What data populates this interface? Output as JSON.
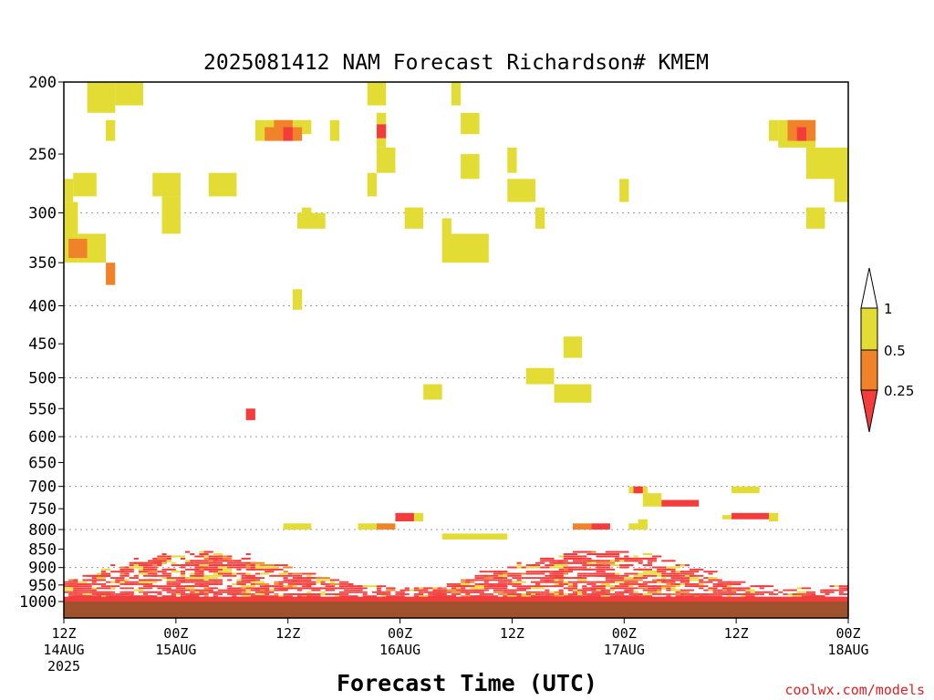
{
  "chart_data": {
    "type": "heatmap",
    "title": "2025081412 NAM Forecast Richardson# KMEM",
    "xlabel": "Forecast Time (UTC)",
    "credit": "coolwx.com/models",
    "y_axis": {
      "quantity": "pressure (hPa)",
      "scale": "log",
      "inverted": true,
      "range": [
        1000,
        200
      ],
      "ticks": [
        "200",
        "250",
        "300",
        "350",
        "400",
        "450",
        "500",
        "550",
        "600",
        "650",
        "700",
        "750",
        "800",
        "850",
        "900",
        "950",
        "1000"
      ],
      "gridlines_at": [
        300,
        400,
        500,
        600,
        700,
        800,
        900
      ]
    },
    "x_axis": {
      "range_hours": [
        0,
        84
      ],
      "ticks": [
        {
          "h": 0,
          "lines": [
            "12Z",
            "14AUG",
            "2025"
          ]
        },
        {
          "h": 12,
          "lines": [
            "00Z",
            "15AUG"
          ]
        },
        {
          "h": 24,
          "lines": [
            "12Z"
          ]
        },
        {
          "h": 36,
          "lines": [
            "00Z",
            "16AUG"
          ]
        },
        {
          "h": 48,
          "lines": [
            "12Z"
          ]
        },
        {
          "h": 60,
          "lines": [
            "00Z",
            "17AUG"
          ]
        },
        {
          "h": 72,
          "lines": [
            "12Z"
          ]
        },
        {
          "h": 84,
          "lines": [
            "00Z",
            "18AUG"
          ]
        }
      ]
    },
    "legend": {
      "placement": "right",
      "labels": [
        "1",
        "0.5",
        "0.25"
      ],
      "bins": [
        {
          "range": "0.5-1",
          "color": "#e3dc34"
        },
        {
          "range": "0.25-0.5",
          "color": "#f0832a"
        },
        {
          "range": "<0.25",
          "color": "#f43c3c"
        }
      ]
    },
    "colors": {
      "high": "#e3dc34",
      "mid": "#f0832a",
      "low": "#f43c3c",
      "ground": "#a0522d",
      "grid": "#999999"
    },
    "cells": [
      [
        2.5,
        5.5,
        200,
        220,
        "high"
      ],
      [
        5.5,
        8.5,
        200,
        215,
        "high"
      ],
      [
        4.5,
        5.5,
        225,
        240,
        "high"
      ],
      [
        0,
        1,
        270,
        290,
        "high"
      ],
      [
        1,
        3.5,
        265,
        285,
        "high"
      ],
      [
        0,
        1.5,
        290,
        350,
        "high"
      ],
      [
        1.5,
        4.5,
        320,
        350,
        "high"
      ],
      [
        0.5,
        2.5,
        325,
        345,
        "mid"
      ],
      [
        4.5,
        5.5,
        350,
        375,
        "mid"
      ],
      [
        9.5,
        12.5,
        265,
        285,
        "high"
      ],
      [
        10.5,
        12.5,
        285,
        320,
        "high"
      ],
      [
        15.5,
        18.5,
        265,
        285,
        "high"
      ],
      [
        20.5,
        21.5,
        225,
        240,
        "high"
      ],
      [
        21.5,
        26.5,
        225,
        235,
        "high"
      ],
      [
        21.5,
        25.5,
        230,
        240,
        "mid"
      ],
      [
        22.5,
        24.5,
        225,
        230,
        "mid"
      ],
      [
        23.5,
        24.5,
        230,
        240,
        "low"
      ],
      [
        28.5,
        29.5,
        225,
        240,
        "high"
      ],
      [
        25.5,
        26.5,
        295,
        310,
        "high"
      ],
      [
        25,
        28,
        300,
        315,
        "high"
      ],
      [
        24.5,
        25.5,
        380,
        405,
        "high"
      ],
      [
        19.5,
        20.5,
        550,
        570,
        "low"
      ],
      [
        32.5,
        34.5,
        200,
        215,
        "high"
      ],
      [
        33.5,
        34.5,
        220,
        245,
        "high"
      ],
      [
        33.5,
        34.5,
        228,
        238,
        "low"
      ],
      [
        33.5,
        35.5,
        245,
        265,
        "high"
      ],
      [
        32.5,
        33.5,
        265,
        285,
        "high"
      ],
      [
        36.5,
        38.5,
        295,
        315,
        "high"
      ],
      [
        41.5,
        42.5,
        200,
        215,
        "high"
      ],
      [
        42.5,
        44.5,
        220,
        235,
        "high"
      ],
      [
        42.5,
        44.5,
        250,
        270,
        "high"
      ],
      [
        40.5,
        41.5,
        305,
        320,
        "high"
      ],
      [
        40.5,
        45.5,
        320,
        350,
        "high"
      ],
      [
        38.5,
        40.5,
        510,
        535,
        "high"
      ],
      [
        47.5,
        48.5,
        245,
        265,
        "high"
      ],
      [
        47.5,
        50.5,
        270,
        290,
        "high"
      ],
      [
        50.5,
        51.5,
        295,
        315,
        "high"
      ],
      [
        53.5,
        55.5,
        440,
        470,
        "high"
      ],
      [
        49.5,
        52.5,
        485,
        510,
        "high"
      ],
      [
        52.5,
        56.5,
        510,
        540,
        "high"
      ],
      [
        59.5,
        60.5,
        270,
        290,
        "high"
      ],
      [
        75.5,
        76.5,
        225,
        240,
        "high"
      ],
      [
        76.5,
        80.5,
        225,
        245,
        "high"
      ],
      [
        77.5,
        80.5,
        225,
        240,
        "mid"
      ],
      [
        78.5,
        79.5,
        230,
        240,
        "low"
      ],
      [
        79.5,
        84,
        245,
        270,
        "high"
      ],
      [
        82.5,
        84,
        265,
        290,
        "high"
      ],
      [
        79.5,
        81.5,
        295,
        315,
        "high"
      ],
      [
        60.5,
        62.5,
        700,
        715,
        "high"
      ],
      [
        61,
        62,
        700,
        715,
        "low"
      ],
      [
        62,
        64,
        715,
        745,
        "high"
      ],
      [
        64,
        68,
        730,
        745,
        "low"
      ],
      [
        71.5,
        74.5,
        700,
        715,
        "high"
      ],
      [
        70.5,
        71.5,
        765,
        775,
        "high"
      ],
      [
        71.5,
        75.5,
        760,
        775,
        "low"
      ],
      [
        75.5,
        76.5,
        760,
        780,
        "high"
      ],
      [
        23.5,
        26.5,
        785,
        800,
        "high"
      ],
      [
        31.5,
        33.5,
        785,
        800,
        "high"
      ],
      [
        33.5,
        35.5,
        785,
        800,
        "mid"
      ],
      [
        35.5,
        37.5,
        760,
        780,
        "low"
      ],
      [
        37.5,
        38.5,
        760,
        780,
        "high"
      ],
      [
        40.5,
        47.5,
        810,
        825,
        "high"
      ],
      [
        54.5,
        56.5,
        785,
        800,
        "mid"
      ],
      [
        56.5,
        58.5,
        785,
        800,
        "low"
      ],
      [
        60.5,
        62.5,
        785,
        800,
        "high"
      ],
      [
        61.5,
        62.5,
        775,
        790,
        "high"
      ]
    ],
    "low_level_bands": [
      {
        "x0": 0,
        "x1": 84,
        "top": 850,
        "bottom": 1000,
        "density": "high"
      }
    ],
    "ground": {
      "from": 1000,
      "to": 1050
    }
  }
}
